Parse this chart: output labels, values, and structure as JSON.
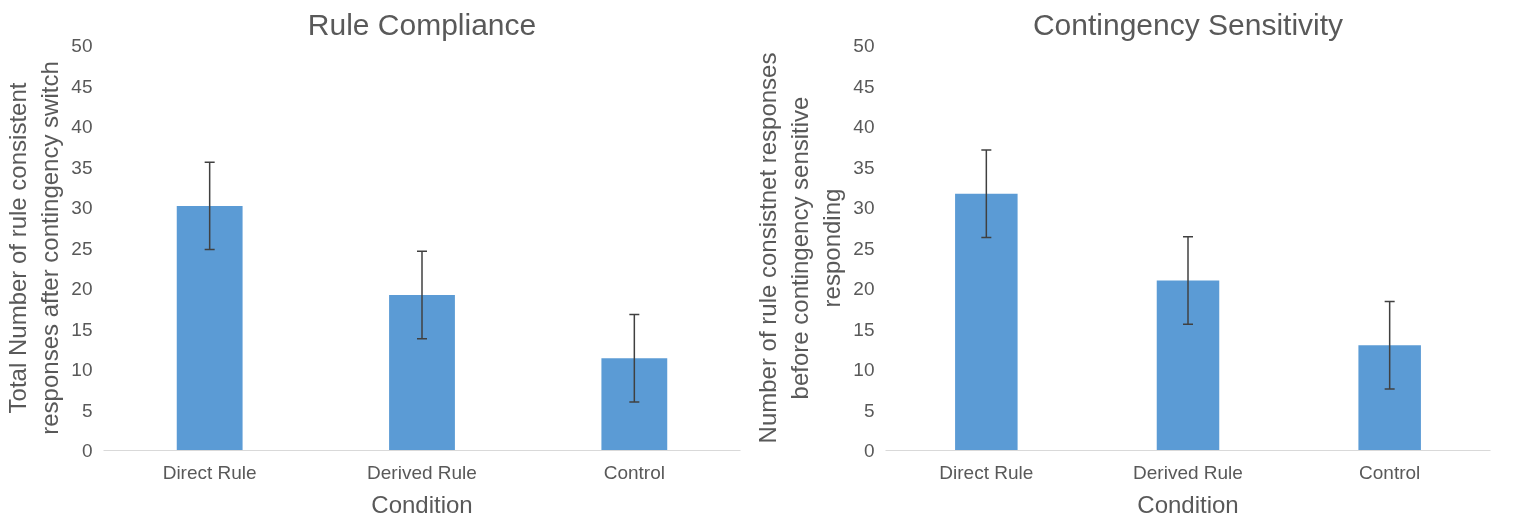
{
  "chart_data": [
    {
      "type": "bar",
      "title": "Rule Compliance",
      "xlabel": "Condition",
      "ylabel": "Total Number of rule consistent\nresponses after contingency switch",
      "categories": [
        "Direct Rule",
        "Derived Rule",
        "Control"
      ],
      "series": [
        {
          "color": "#5b9bd5",
          "values": [
            30.2,
            19.2,
            11.4
          ],
          "errors": [
            5.4,
            5.4,
            5.4
          ]
        }
      ],
      "ylim": [
        0,
        50
      ],
      "yticks": [
        0,
        5,
        10,
        15,
        20,
        25,
        30,
        35,
        40,
        45,
        50
      ],
      "grid": false
    },
    {
      "type": "bar",
      "title": "Contingency Sensitivity",
      "xlabel": "Condition",
      "ylabel": "Number of rule consistnet responses\nbefore contingency sensitive\nresponding",
      "categories": [
        "Direct Rule",
        "Derived Rule",
        "Control"
      ],
      "series": [
        {
          "color": "#5b9bd5",
          "values": [
            31.7,
            21.0,
            13.0
          ],
          "errors": [
            5.4,
            5.4,
            5.4
          ]
        }
      ],
      "ylim": [
        0,
        50
      ],
      "yticks": [
        0,
        5,
        10,
        15,
        20,
        25,
        30,
        35,
        40,
        45,
        50
      ],
      "grid": false
    }
  ]
}
